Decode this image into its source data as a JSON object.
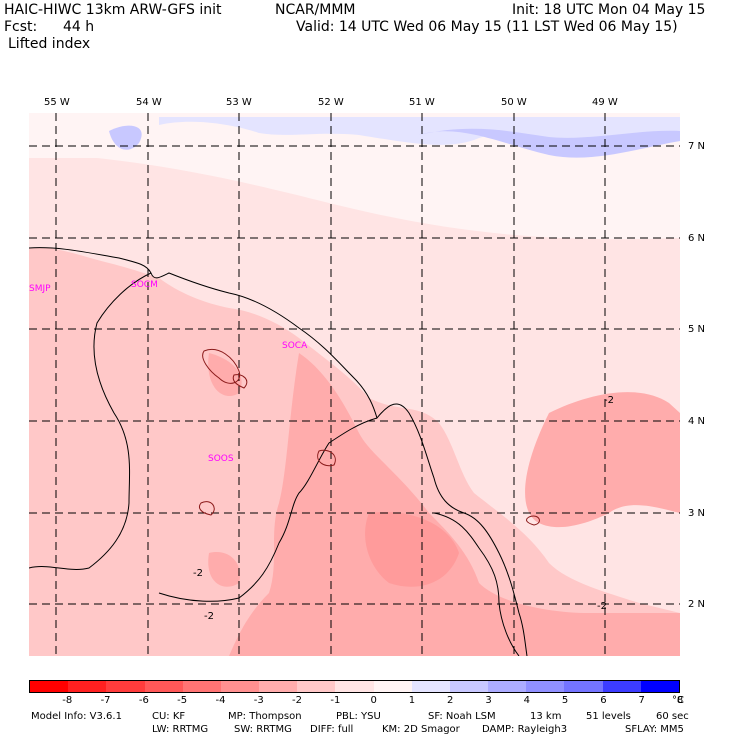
{
  "header": {
    "model": "HAIC-HIWC 13km ARW-GFS init",
    "org": "NCAR/MMM",
    "init": "Init: 18 UTC Mon 04 May 15",
    "fcst_label": "Fcst:",
    "fcst_value": "44 h",
    "valid": "Valid: 14 UTC Wed 06 May 15 (11 LST Wed 06 May 15)",
    "field": "Lifted index"
  },
  "map": {
    "lon_labels": [
      "55 W",
      "54 W",
      "53 W",
      "52 W",
      "51 W",
      "50 W",
      "49 W"
    ],
    "lat_labels": [
      "7 N",
      "6 N",
      "5 N",
      "4 N",
      "3 N",
      "2 N"
    ],
    "stations": [
      "SMJP",
      "SOCM",
      "SOCA",
      "SOOS"
    ],
    "contour_labels": [
      "-2",
      "-2",
      "-2",
      "-2"
    ]
  },
  "colorbar": {
    "labels": [
      "-8",
      "-7",
      "-6",
      "-5",
      "-4",
      "-3",
      "-2",
      "-1",
      "0",
      "1",
      "2",
      "3",
      "4",
      "5",
      "6",
      "7",
      "8"
    ],
    "unit": "°C",
    "colors": [
      "#ff0000",
      "#ff2020",
      "#ff3c3c",
      "#ff5858",
      "#ff7474",
      "#ff9090",
      "#ffacac",
      "#ffc8c8",
      "#ffe4e4",
      "#fff4f4",
      "#e4e4ff",
      "#c8c8ff",
      "#acacff",
      "#9090ff",
      "#7474ff",
      "#3c3cff",
      "#0000ff"
    ]
  },
  "footer": {
    "line1": [
      "Model Info: V3.6.1",
      "CU: KF",
      "MP: Thompson",
      "PBL: YSU",
      "SF: Noah LSM",
      "13 km",
      "51 levels",
      "60 sec"
    ],
    "line2": [
      "LW: RRTMG",
      "SW: RRTMG",
      "DIFF: full",
      "KM: 2D Smagor",
      "DAMP: Rayleigh3",
      "SFLAY: MM5"
    ]
  }
}
